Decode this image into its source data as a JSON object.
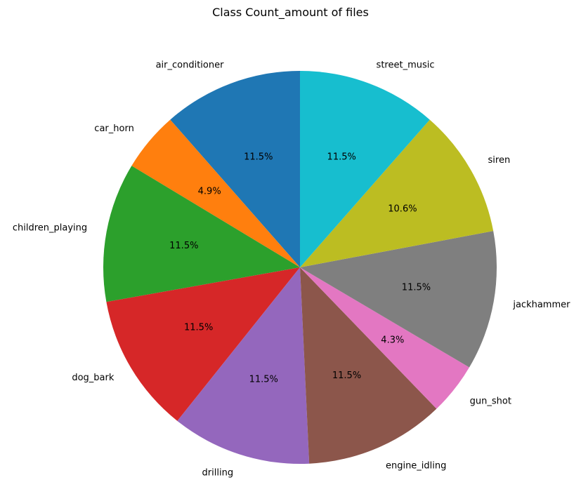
{
  "chart_data": {
    "type": "pie",
    "title": "Class Count_amount of files",
    "start_angle_deg": 90,
    "direction": "counterclockwise",
    "slices": [
      {
        "label": "air_conditioner",
        "percent_label": "11.5%",
        "value": 11.5,
        "color": "#1f77b4"
      },
      {
        "label": "car_horn",
        "percent_label": "4.9%",
        "value": 4.9,
        "color": "#ff7f0e"
      },
      {
        "label": "children_playing",
        "percent_label": "11.5%",
        "value": 11.5,
        "color": "#2ca02c"
      },
      {
        "label": "dog_bark",
        "percent_label": "11.5%",
        "value": 11.5,
        "color": "#d62728"
      },
      {
        "label": "drilling",
        "percent_label": "11.5%",
        "value": 11.5,
        "color": "#9467bd"
      },
      {
        "label": "engine_idling",
        "percent_label": "11.5%",
        "value": 11.5,
        "color": "#8c564b"
      },
      {
        "label": "gun_shot",
        "percent_label": "4.3%",
        "value": 4.3,
        "color": "#e377c2"
      },
      {
        "label": "jackhammer",
        "percent_label": "11.5%",
        "value": 11.5,
        "color": "#7f7f7f"
      },
      {
        "label": "siren",
        "percent_label": "10.6%",
        "value": 10.6,
        "color": "#bcbd22"
      },
      {
        "label": "street_music",
        "percent_label": "11.5%",
        "value": 11.5,
        "color": "#17becf"
      }
    ]
  }
}
